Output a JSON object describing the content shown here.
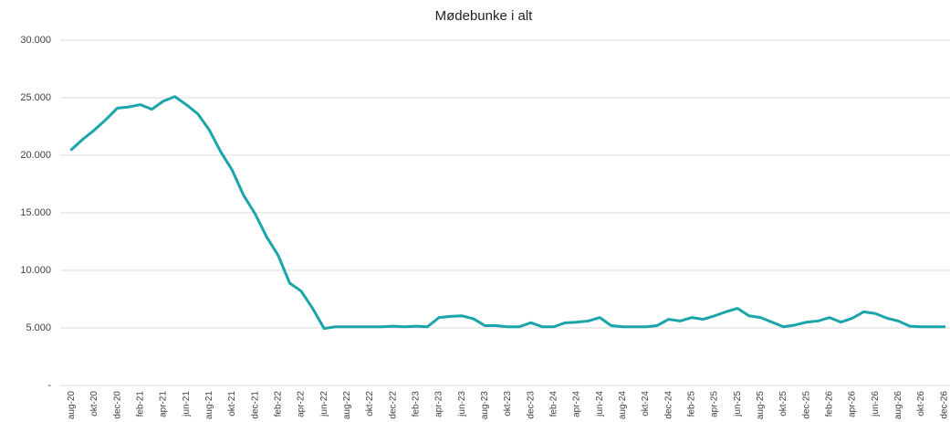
{
  "chart_data": {
    "type": "line",
    "title": "Mødebunke i alt",
    "categories": [
      "aug-20",
      null,
      "okt-20",
      null,
      "dec-20",
      null,
      "feb-21",
      null,
      "apr-21",
      null,
      "jun-21",
      null,
      "aug-21",
      null,
      "okt-21",
      null,
      "dec-21",
      null,
      "feb-22",
      null,
      "apr-22",
      null,
      "jun-22",
      null,
      "aug-22",
      null,
      "okt-22",
      null,
      "dec-22",
      null,
      "feb-23",
      null,
      "apr-23",
      null,
      "jun-23",
      null,
      "aug-23",
      null,
      "okt-23",
      null,
      "dec-23",
      null,
      "feb-24",
      null,
      "apr-24",
      null,
      "jun-24",
      null,
      "aug-24",
      null,
      "okt-24",
      null,
      "dec-24",
      null,
      "feb-25",
      null,
      "apr-25",
      null,
      "jun-25",
      null,
      "aug-25",
      null,
      "okt-25",
      null,
      "dec-25",
      null,
      "feb-26",
      null,
      "apr-26",
      null,
      "jun-26",
      null,
      "aug-26",
      null,
      "okt-26",
      null,
      "dec-26"
    ],
    "values": [
      20500,
      21400,
      22200,
      23100,
      24100,
      24200,
      24400,
      24000,
      24700,
      25100,
      24400,
      23600,
      22200,
      20300,
      18700,
      16500,
      14900,
      12900,
      11300,
      8900,
      8200,
      6700,
      4950,
      5100,
      5100,
      5100,
      5100,
      5100,
      5150,
      5100,
      5150,
      5100,
      5900,
      6000,
      6050,
      5800,
      5200,
      5200,
      5100,
      5100,
      5450,
      5100,
      5100,
      5450,
      5500,
      5600,
      5900,
      5200,
      5100,
      5100,
      5100,
      5200,
      5750,
      5600,
      5900,
      5750,
      6050,
      6400,
      6700,
      6050,
      5900,
      5500,
      5100,
      5250,
      5500,
      5600,
      5900,
      5500,
      5850,
      6400,
      6250,
      5850,
      5600,
      5150,
      5100,
      5100,
      5100
    ],
    "color": "#1ba4aa",
    "ylim": [
      0,
      30000
    ],
    "yticks": [
      {
        "value": 0,
        "label": "-"
      },
      {
        "value": 5000,
        "label": "5.000"
      },
      {
        "value": 10000,
        "label": "10.000"
      },
      {
        "value": 15000,
        "label": "15.000"
      },
      {
        "value": 20000,
        "label": "20.000"
      },
      {
        "value": 25000,
        "label": "25.000"
      },
      {
        "value": 30000,
        "label": "30.000"
      }
    ],
    "grid": true
  }
}
